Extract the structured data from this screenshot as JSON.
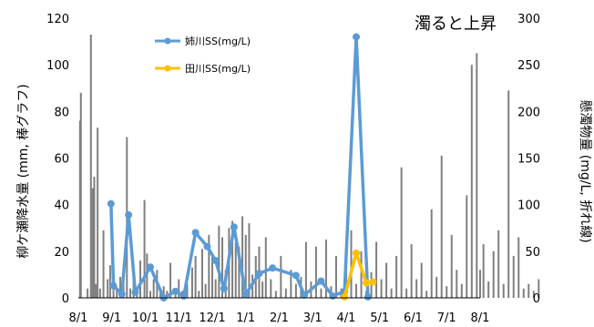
{
  "chart_data": {
    "type": "bar+line",
    "annotation": "濁ると上昇",
    "y_left": {
      "label": "柳ケ瀬降水量 (mm, 棒グラフ)",
      "ylim": [
        0,
        120
      ],
      "ticks": [
        0,
        20,
        40,
        60,
        80,
        100,
        120
      ]
    },
    "y_right": {
      "label": "懸濁物量 (mg/L, 折れ線)",
      "ylim": [
        0,
        300
      ],
      "ticks": [
        0,
        50,
        100,
        150,
        200,
        250,
        300
      ]
    },
    "x_axis": {
      "tick_labels": [
        "8/1",
        "9/1",
        "10/1",
        "11/1",
        "12/1",
        "1/1",
        "2/1",
        "3/1",
        "4/1",
        "5/1",
        "6/1",
        "7/1",
        "8/1"
      ]
    },
    "bars": {
      "axis": "left",
      "color": "#7f7f7f",
      "values": [
        [
          0.1,
          76
        ],
        [
          0.15,
          88
        ],
        [
          0.55,
          4
        ],
        [
          0.75,
          113
        ],
        [
          0.85,
          47
        ],
        [
          0.95,
          52
        ],
        [
          1.05,
          6
        ],
        [
          1.15,
          73
        ],
        [
          1.3,
          4
        ],
        [
          1.5,
          29
        ],
        [
          1.75,
          8
        ],
        [
          1.9,
          14
        ],
        [
          2.1,
          7
        ],
        [
          2.3,
          4
        ],
        [
          2.5,
          9
        ],
        [
          2.7,
          6
        ],
        [
          2.9,
          69
        ],
        [
          3.1,
          4
        ],
        [
          3.3,
          11
        ],
        [
          3.5,
          4
        ],
        [
          3.7,
          16
        ],
        [
          3.95,
          42
        ],
        [
          4.1,
          19
        ],
        [
          4.3,
          3
        ],
        [
          4.5,
          8
        ],
        [
          4.7,
          12
        ],
        [
          4.9,
          4
        ],
        [
          5.1,
          5
        ],
        [
          5.3,
          3
        ],
        [
          5.5,
          15
        ],
        [
          5.8,
          4
        ],
        [
          6.0,
          8
        ],
        [
          6.2,
          3
        ],
        [
          6.5,
          6
        ],
        [
          6.8,
          13
        ],
        [
          7.0,
          18
        ],
        [
          7.2,
          3
        ],
        [
          7.4,
          21
        ],
        [
          7.6,
          6
        ],
        [
          7.8,
          27
        ],
        [
          8.0,
          19
        ],
        [
          8.2,
          8
        ],
        [
          8.4,
          31
        ],
        [
          8.6,
          26
        ],
        [
          8.8,
          12
        ],
        [
          9.0,
          30
        ],
        [
          9.2,
          33
        ],
        [
          9.4,
          24
        ],
        [
          9.6,
          22
        ],
        [
          9.8,
          35
        ],
        [
          10.0,
          27
        ],
        [
          10.2,
          32
        ],
        [
          10.4,
          10
        ],
        [
          10.6,
          18
        ],
        [
          10.8,
          22
        ],
        [
          11.0,
          7
        ],
        [
          11.2,
          26
        ],
        [
          11.5,
          8
        ],
        [
          11.8,
          3
        ],
        [
          12.1,
          18
        ],
        [
          12.4,
          4
        ],
        [
          12.7,
          12
        ],
        [
          13.0,
          6
        ],
        [
          13.3,
          9
        ],
        [
          13.6,
          24
        ],
        [
          13.9,
          7
        ],
        [
          14.2,
          22
        ],
        [
          14.5,
          4
        ],
        [
          14.8,
          25
        ],
        [
          15.1,
          5
        ],
        [
          15.4,
          18
        ],
        [
          15.7,
          4
        ],
        [
          16.0,
          16
        ],
        [
          16.3,
          29
        ],
        [
          16.6,
          6
        ],
        [
          16.9,
          20
        ],
        [
          17.2,
          3
        ],
        [
          17.5,
          11
        ],
        [
          17.8,
          24
        ],
        [
          18.1,
          8
        ],
        [
          18.4,
          15
        ],
        [
          18.7,
          4
        ],
        [
          19.0,
          18
        ],
        [
          19.3,
          56
        ],
        [
          19.6,
          4
        ],
        [
          19.9,
          23
        ],
        [
          20.2,
          8
        ],
        [
          20.5,
          15
        ],
        [
          20.8,
          3
        ],
        [
          21.1,
          38
        ],
        [
          21.4,
          9
        ],
        [
          21.7,
          61
        ],
        [
          22.0,
          5
        ],
        [
          22.3,
          27
        ],
        [
          22.6,
          12
        ],
        [
          22.9,
          6
        ],
        [
          23.2,
          44
        ],
        [
          23.5,
          100
        ],
        [
          23.8,
          105
        ],
        [
          24.0,
          12
        ],
        [
          24.2,
          23
        ],
        [
          24.5,
          7
        ],
        [
          24.8,
          20
        ],
        [
          25.1,
          29
        ],
        [
          25.4,
          6
        ],
        [
          25.7,
          89
        ],
        [
          26.0,
          18
        ],
        [
          26.3,
          26
        ],
        [
          26.6,
          4
        ],
        [
          26.9,
          6
        ],
        [
          27.2,
          3
        ],
        [
          27.5,
          8
        ]
      ]
    },
    "series": [
      {
        "name": "姉川SS(mg/L)",
        "axis": "right",
        "color": "#5b9bd5",
        "points": [
          [
            1.95,
            101
          ],
          [
            2.1,
            13
          ],
          [
            2.6,
            4
          ],
          [
            3.0,
            89
          ],
          [
            3.4,
            6
          ],
          [
            4.3,
            33
          ],
          [
            5.1,
            0
          ],
          [
            5.8,
            7
          ],
          [
            6.3,
            2
          ],
          [
            7.0,
            70
          ],
          [
            7.7,
            55
          ],
          [
            8.2,
            40
          ],
          [
            8.7,
            10
          ],
          [
            9.3,
            76
          ],
          [
            10.0,
            4
          ],
          [
            10.8,
            26
          ],
          [
            11.6,
            32
          ],
          [
            13.0,
            24
          ],
          [
            13.5,
            3
          ],
          [
            14.5,
            18
          ],
          [
            15.2,
            2
          ],
          [
            15.9,
            7
          ],
          [
            16.6,
            280
          ],
          [
            17.3,
            1
          ]
        ]
      },
      {
        "name": "田川SS(mg/L)",
        "axis": "right",
        "color": "#ffc000",
        "points": [
          [
            15.9,
            1
          ],
          [
            16.6,
            48
          ],
          [
            17.2,
            16
          ],
          [
            17.6,
            17
          ]
        ]
      }
    ]
  }
}
